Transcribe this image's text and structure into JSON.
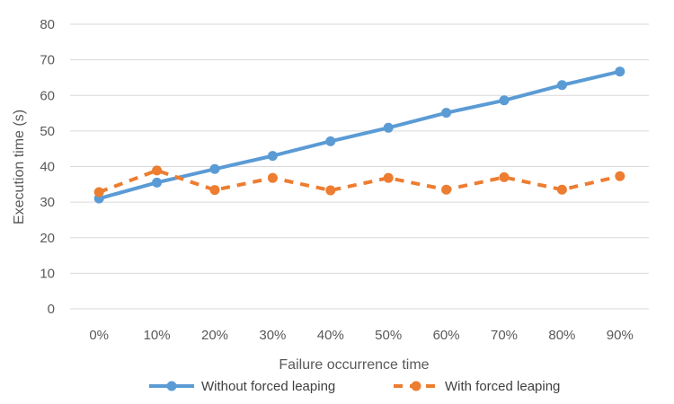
{
  "chart_data": {
    "type": "line",
    "categories": [
      "0%",
      "10%",
      "20%",
      "30%",
      "40%",
      "50%",
      "60%",
      "70%",
      "80%",
      "90%"
    ],
    "series": [
      {
        "name": "Without forced leaping",
        "color": "#5b9bd5",
        "style": "solid",
        "values": [
          31.0,
          35.5,
          39.3,
          43.0,
          47.1,
          50.9,
          55.1,
          58.6,
          62.9,
          66.7
        ]
      },
      {
        "name": "With forced leaping",
        "color": "#ed7d31",
        "style": "dashed",
        "values": [
          32.8,
          38.9,
          33.4,
          36.8,
          33.3,
          36.8,
          33.5,
          37.0,
          33.5,
          37.3
        ]
      }
    ],
    "title": "",
    "xlabel": "Failure occurrence time",
    "ylabel": "Execution time (s)",
    "ylim": [
      0,
      80
    ],
    "yticks": [
      0,
      10,
      20,
      30,
      40,
      50,
      60,
      70,
      80
    ],
    "grid": true,
    "legend_position": "bottom"
  }
}
